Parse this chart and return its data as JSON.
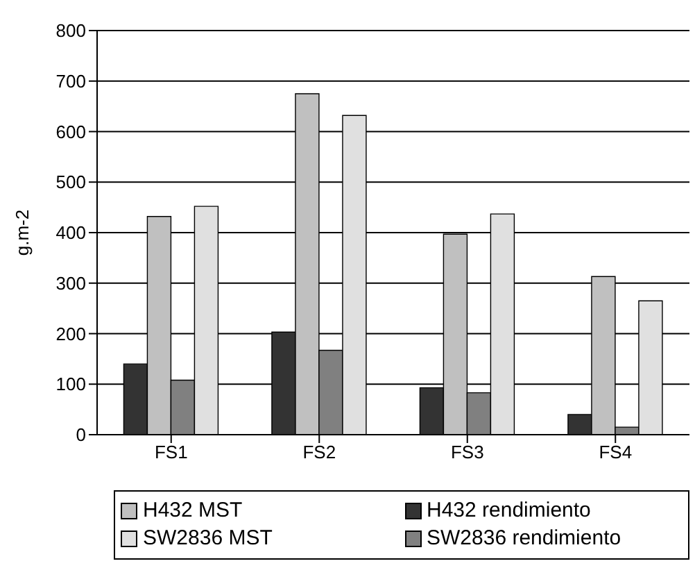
{
  "chart_data": {
    "type": "bar",
    "ylabel": "g.m-2",
    "categories": [
      "FS1",
      "FS2",
      "FS3",
      "FS4"
    ],
    "series": [
      {
        "name": "H432 rendimiento",
        "color": "#333333",
        "values": [
          140,
          203,
          93,
          40
        ]
      },
      {
        "name": "H432 MST",
        "color": "#c0c0c0",
        "values": [
          432,
          675,
          397,
          313
        ]
      },
      {
        "name": "SW2836 rendimiento",
        "color": "#808080",
        "values": [
          108,
          167,
          83,
          15
        ]
      },
      {
        "name": "SW2836 MST",
        "color": "#e0e0e0",
        "values": [
          452,
          632,
          437,
          265
        ]
      }
    ],
    "ylim": [
      0,
      800
    ],
    "yticks": [
      0,
      100,
      200,
      300,
      400,
      500,
      600,
      700,
      800
    ],
    "grid": "y",
    "legend": "bottom"
  }
}
